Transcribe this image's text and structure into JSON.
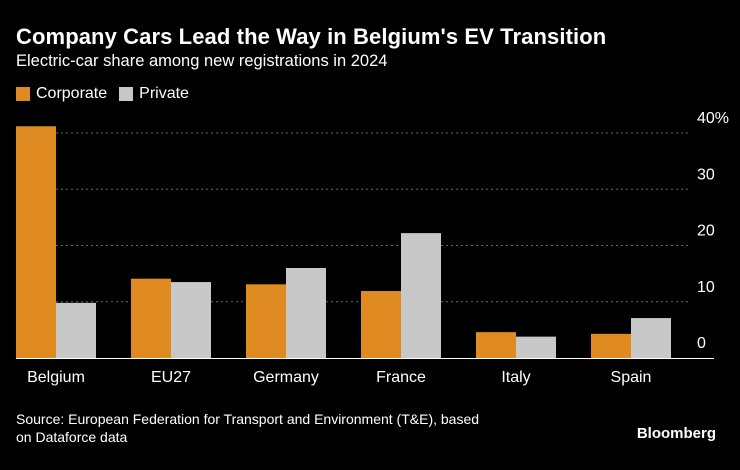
{
  "header": {
    "title": "Company Cars Lead the Way in Belgium's EV Transition",
    "subtitle": "Electric-car share among new registrations in 2024"
  },
  "legend": [
    {
      "label": "Corporate",
      "color": "#e08a22"
    },
    {
      "label": "Private",
      "color": "#c8c8c8"
    }
  ],
  "footer": {
    "source_line1": "Source: European Federation for Transport and Environment (T&E), based",
    "source_line2": "on Dataforce data",
    "brand": "Bloomberg"
  },
  "chart_data": {
    "type": "bar",
    "title": "Company Cars Lead the Way in Belgium's EV Transition",
    "subtitle": "Electric-car share among new registrations in 2024",
    "categories": [
      "Belgium",
      "EU27",
      "Germany",
      "France",
      "Italy",
      "Spain"
    ],
    "series": [
      {
        "name": "Corporate",
        "color": "#e08a22",
        "values": [
          41.2,
          14.1,
          13.1,
          11.9,
          4.6,
          4.3
        ]
      },
      {
        "name": "Private",
        "color": "#c8c8c8",
        "values": [
          9.8,
          13.5,
          16.0,
          22.2,
          3.8,
          7.1
        ]
      }
    ],
    "ylim": [
      0,
      40
    ],
    "yticks": [
      0,
      10,
      20,
      30,
      40
    ],
    "ytick_suffix": "%",
    "xlabel": "",
    "ylabel": "",
    "grid": true,
    "legend_position": "top-left"
  }
}
